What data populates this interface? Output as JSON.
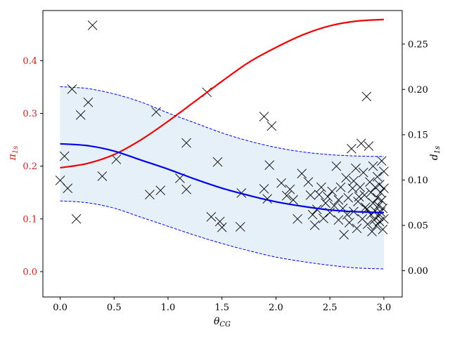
{
  "chart_data": {
    "type": "line",
    "title": "",
    "xlabel": "θ",
    "xlabel_sub": "CG",
    "ylabel_left": "π",
    "ylabel_left_sub": "1s",
    "ylabel_right": "d",
    "ylabel_right_sub": "1s",
    "xlim": [
      -0.16,
      3.17
    ],
    "ylim_left": [
      -0.048,
      0.495
    ],
    "ylim_right": [
      -0.029,
      0.287
    ],
    "x_ticks": [
      0.0,
      0.5,
      1.0,
      1.5,
      2.0,
      2.5,
      3.0
    ],
    "x_tick_labels": [
      "0.0",
      "0.5",
      "1.0",
      "1.5",
      "2.0",
      "2.5",
      "3.0"
    ],
    "y_left_ticks": [
      0.0,
      0.1,
      0.2,
      0.3,
      0.4
    ],
    "y_left_tick_labels": [
      "0.0",
      "0.1",
      "0.2",
      "0.3",
      "0.4"
    ],
    "y_right_ticks": [
      0.0,
      0.05,
      0.1,
      0.15,
      0.2,
      0.25
    ],
    "y_right_tick_labels": [
      "0.00",
      "0.05",
      "0.10",
      "0.15",
      "0.20",
      "0.25"
    ],
    "colors": {
      "pi_line": "#ee0000",
      "d_mean": "#0000ee",
      "band_fill": "#e6f0f8",
      "markers": "#000000",
      "left_axis_text": "#cc2222"
    },
    "series": [
      {
        "axis": "left",
        "style": "solid-red",
        "x": [
          0.0,
          0.25,
          0.5,
          0.75,
          1.0,
          1.25,
          1.5,
          1.75,
          2.0,
          2.25,
          2.5,
          2.75,
          3.0
        ],
        "values": [
          0.197,
          0.205,
          0.222,
          0.25,
          0.285,
          0.323,
          0.361,
          0.397,
          0.425,
          0.449,
          0.466,
          0.475,
          0.478
        ]
      },
      {
        "axis": "right",
        "style": "solid-blue",
        "x": [
          0.0,
          0.25,
          0.5,
          0.75,
          1.0,
          1.25,
          1.5,
          1.75,
          2.0,
          2.25,
          2.5,
          2.75,
          3.0
        ],
        "values": [
          0.14,
          0.138,
          0.132,
          0.122,
          0.112,
          0.101,
          0.091,
          0.083,
          0.076,
          0.071,
          0.067,
          0.065,
          0.064
        ]
      },
      {
        "axis": "right",
        "style": "dashed-blue-upper",
        "x": [
          0.0,
          0.25,
          0.5,
          0.75,
          1.0,
          1.25,
          1.5,
          1.75,
          2.0,
          2.25,
          2.5,
          2.75,
          3.0
        ],
        "values": [
          0.203,
          0.201,
          0.195,
          0.186,
          0.174,
          0.163,
          0.152,
          0.143,
          0.136,
          0.131,
          0.128,
          0.1265,
          0.126
        ]
      },
      {
        "axis": "right",
        "style": "dashed-blue-lower",
        "x": [
          0.0,
          0.25,
          0.5,
          0.75,
          1.0,
          1.25,
          1.5,
          1.75,
          2.0,
          2.25,
          2.5,
          2.75,
          3.0
        ],
        "values": [
          0.077,
          0.075,
          0.069,
          0.059,
          0.049,
          0.039,
          0.03,
          0.022,
          0.015,
          0.01,
          0.006,
          0.003,
          0.002
        ]
      }
    ],
    "scatter_left_axis": {
      "marker": "x",
      "points": [
        [
          0.0,
          0.173
        ],
        [
          0.04,
          0.219
        ],
        [
          0.07,
          0.158
        ],
        [
          0.11,
          0.346
        ],
        [
          0.15,
          0.1
        ],
        [
          0.19,
          0.297
        ],
        [
          0.26,
          0.321
        ],
        [
          0.3,
          0.467
        ],
        [
          0.39,
          0.181
        ],
        [
          0.52,
          0.213
        ],
        [
          0.83,
          0.146
        ],
        [
          0.89,
          0.303
        ],
        [
          0.93,
          0.154
        ],
        [
          1.11,
          0.177
        ],
        [
          1.17,
          0.244
        ],
        [
          1.17,
          0.156
        ],
        [
          1.36,
          0.34
        ],
        [
          1.4,
          0.104
        ],
        [
          1.46,
          0.208
        ],
        [
          1.48,
          0.095
        ],
        [
          1.5,
          0.084
        ],
        [
          1.67,
          0.085
        ],
        [
          1.68,
          0.149
        ],
        [
          1.89,
          0.157
        ],
        [
          1.89,
          0.294
        ],
        [
          1.92,
          0.138
        ],
        [
          1.94,
          0.202
        ],
        [
          1.96,
          0.276
        ],
        [
          2.05,
          0.168
        ],
        [
          2.1,
          0.144
        ],
        [
          2.13,
          0.156
        ],
        [
          2.16,
          0.136
        ],
        [
          2.2,
          0.1
        ],
        [
          2.24,
          0.186
        ],
        [
          2.3,
          0.17
        ],
        [
          2.32,
          0.145
        ],
        [
          2.34,
          0.108
        ],
        [
          2.36,
          0.088
        ],
        [
          2.38,
          0.118
        ],
        [
          2.4,
          0.146
        ],
        [
          2.42,
          0.16
        ],
        [
          2.44,
          0.101
        ],
        [
          2.46,
          0.13
        ],
        [
          2.48,
          0.142
        ],
        [
          2.5,
          0.112
        ],
        [
          2.52,
          0.152
        ],
        [
          2.54,
          0.125
        ],
        [
          2.56,
          0.2
        ],
        [
          2.58,
          0.098
        ],
        [
          2.6,
          0.16
        ],
        [
          2.62,
          0.12
        ],
        [
          2.63,
          0.07
        ],
        [
          2.65,
          0.178
        ],
        [
          2.67,
          0.14
        ],
        [
          2.68,
          0.093
        ],
        [
          2.7,
          0.233
        ],
        [
          2.71,
          0.158
        ],
        [
          2.72,
          0.114
        ],
        [
          2.74,
          0.196
        ],
        [
          2.75,
          0.082
        ],
        [
          2.76,
          0.133
        ],
        [
          2.78,
          0.16
        ],
        [
          2.79,
          0.243
        ],
        [
          2.8,
          0.1
        ],
        [
          2.81,
          0.188
        ],
        [
          2.82,
          0.145
        ],
        [
          2.83,
          0.122
        ],
        [
          2.84,
          0.332
        ],
        [
          2.85,
          0.09
        ],
        [
          2.86,
          0.238
        ],
        [
          2.87,
          0.17
        ],
        [
          2.88,
          0.108
        ],
        [
          2.88,
          0.15
        ],
        [
          2.89,
          0.076
        ],
        [
          2.9,
          0.13
        ],
        [
          2.9,
          0.2
        ],
        [
          2.91,
          0.098
        ],
        [
          2.92,
          0.16
        ],
        [
          2.92,
          0.115
        ],
        [
          2.93,
          0.087
        ],
        [
          2.94,
          0.18
        ],
        [
          2.94,
          0.14
        ],
        [
          2.95,
          0.105
        ],
        [
          2.95,
          0.125
        ],
        [
          2.96,
          0.165
        ],
        [
          2.96,
          0.095
        ],
        [
          2.97,
          0.15
        ],
        [
          2.97,
          0.113
        ],
        [
          2.98,
          0.21
        ],
        [
          2.98,
          0.135
        ],
        [
          2.99,
          0.08
        ],
        [
          2.99,
          0.12
        ],
        [
          3.0,
          0.158
        ],
        [
          3.0,
          0.1
        ],
        [
          3.0,
          0.19
        ],
        [
          2.58,
          0.136
        ],
        [
          2.66,
          0.108
        ],
        [
          2.72,
          0.172
        ],
        [
          2.77,
          0.142
        ],
        [
          2.84,
          0.118
        ]
      ]
    }
  }
}
